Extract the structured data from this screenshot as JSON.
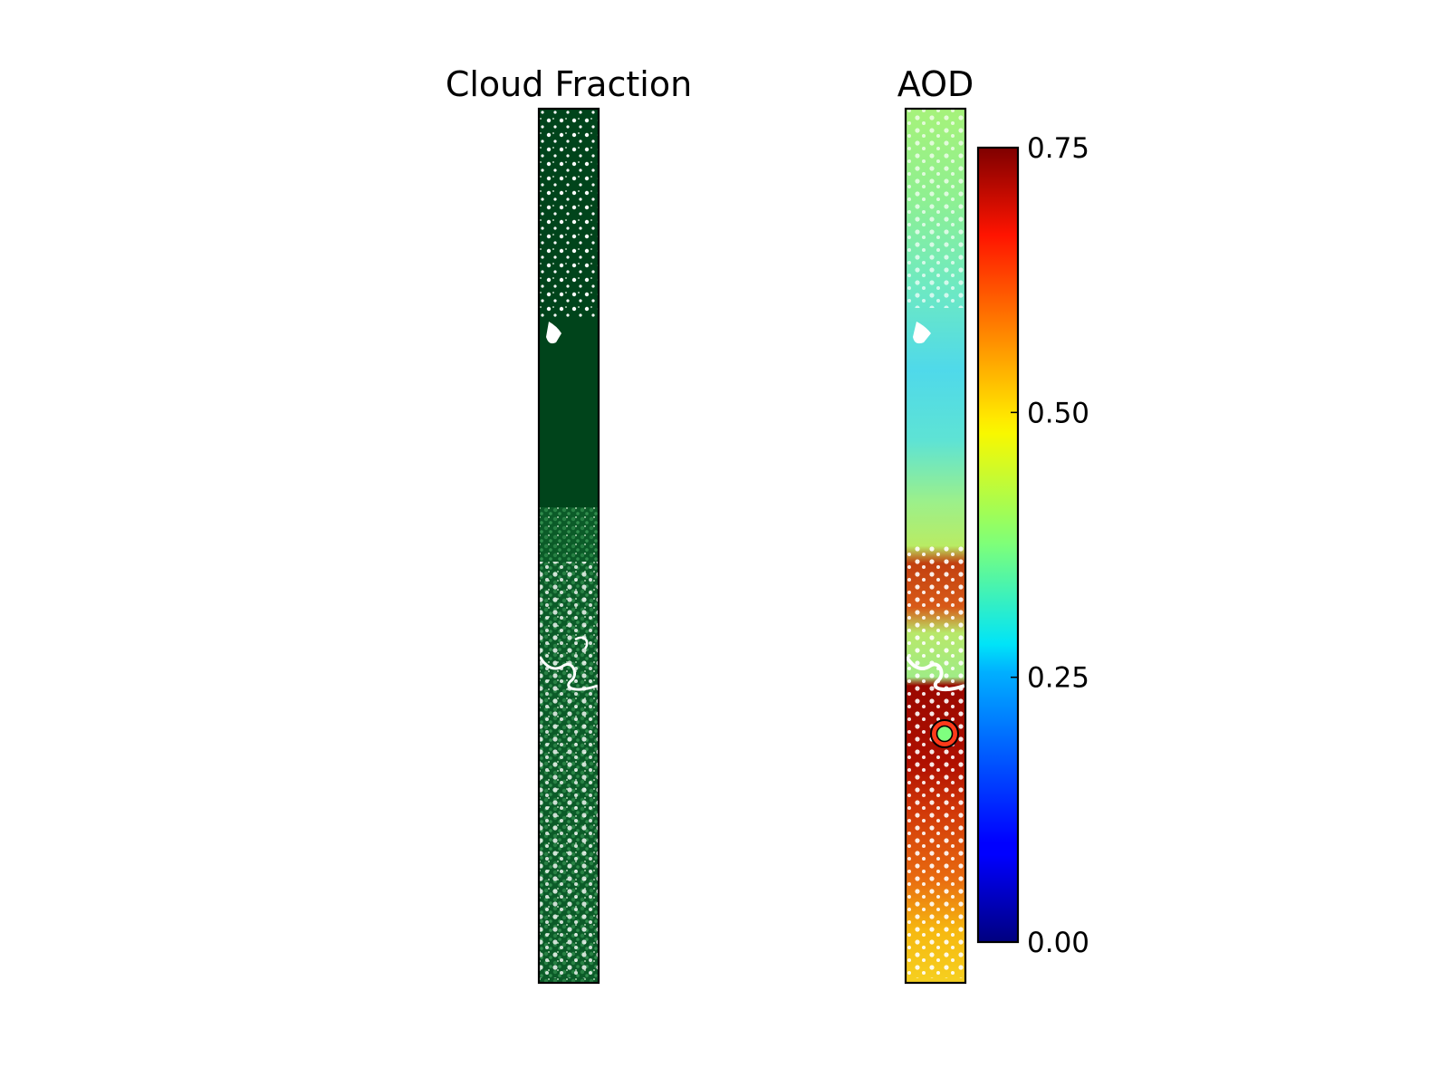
{
  "chart_data": [
    {
      "type": "heatmap",
      "title": "Cloud Fraction",
      "xlabel": "",
      "ylabel": "",
      "colormap": "white-to-dark-green",
      "color_low": "#ffffff",
      "color_high": "#00441b",
      "grid": false,
      "axis_ticks": false,
      "description_values": {
        "top_segment": "scattered white cloud speckles",
        "middle_segment": "mostly solid dark green",
        "lower_segment": "light green mottling with white speckles and a white river feature"
      }
    },
    {
      "type": "heatmap",
      "title": "AOD",
      "xlabel": "",
      "ylabel": "",
      "colormap": "jet",
      "colorbar": {
        "ticks": [
          0.0,
          0.25,
          0.5,
          0.75
        ],
        "tick_labels": [
          "0.00",
          "0.25",
          "0.50",
          "0.75"
        ],
        "vmin": 0.0,
        "vmax": 0.75,
        "colors": [
          "#00007f",
          "#0000ff",
          "#007fff",
          "#00ffff",
          "#7fff7f",
          "#ffff00",
          "#ff7f00",
          "#ff0000",
          "#7f0000"
        ]
      },
      "approx_values_by_segment": [
        {
          "segment": "top",
          "aod": 0.42
        },
        {
          "segment": "upper-middle",
          "aod": 0.3
        },
        {
          "segment": "middle",
          "aod": 0.35
        },
        {
          "segment": "lower-middle",
          "aod": 0.72
        },
        {
          "segment": "lower",
          "aod": 0.65
        },
        {
          "segment": "bottom",
          "aod": 0.55
        }
      ],
      "marker": {
        "shape": "circle",
        "fill_color": "#7fff7f",
        "ring_color": "#ff3a1a",
        "edge_color": "#000000",
        "aod": 0.4
      },
      "grid": false,
      "axis_ticks": false
    }
  ]
}
